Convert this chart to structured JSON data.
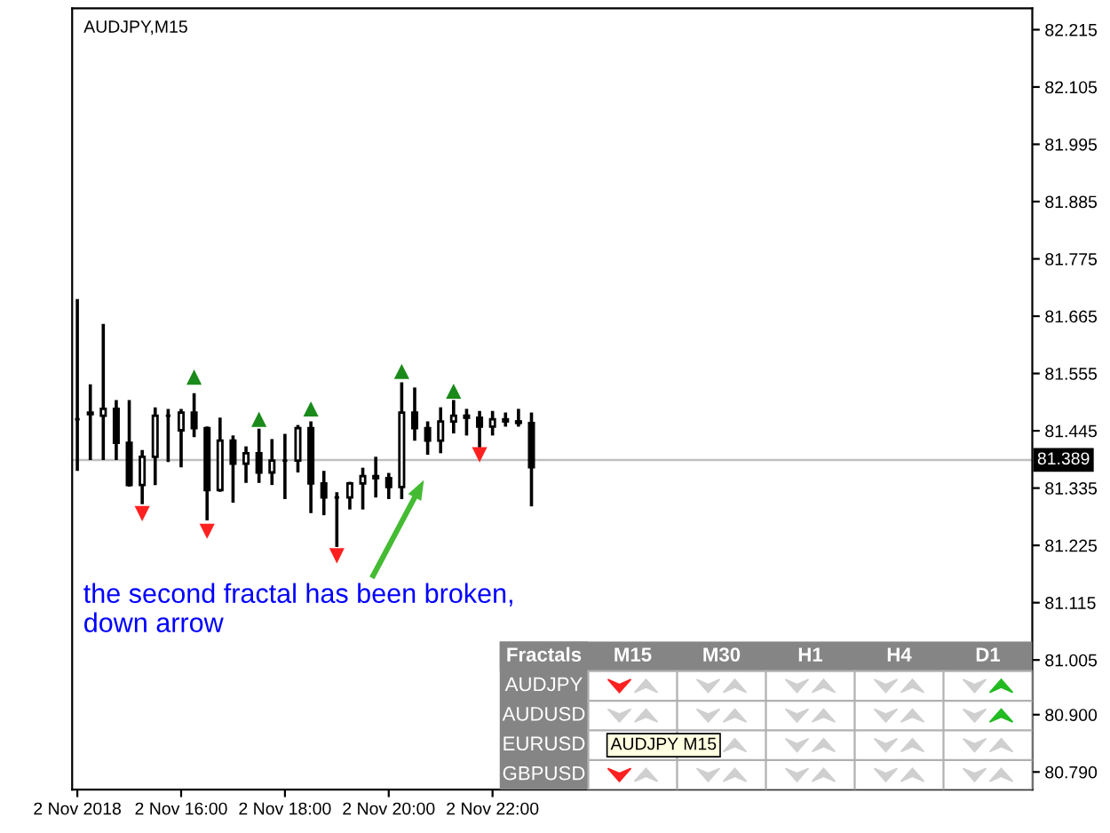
{
  "chart_data": [
    {
      "type": "candlestick",
      "title": "AUDJPY,M15",
      "x": [
        "2018-11-02T14:00",
        "2018-11-02T14:15",
        "2018-11-02T14:30",
        "2018-11-02T14:45",
        "2018-11-02T15:00",
        "2018-11-02T15:15",
        "2018-11-02T15:30",
        "2018-11-02T15:45",
        "2018-11-02T16:00",
        "2018-11-02T16:15",
        "2018-11-02T16:30",
        "2018-11-02T16:45",
        "2018-11-02T17:00",
        "2018-11-02T17:15",
        "2018-11-02T17:30",
        "2018-11-02T17:45",
        "2018-11-02T18:00",
        "2018-11-02T18:15",
        "2018-11-02T18:30",
        "2018-11-02T18:45",
        "2018-11-02T19:00",
        "2018-11-02T19:15",
        "2018-11-02T19:30",
        "2018-11-02T19:45",
        "2018-11-02T20:00",
        "2018-11-02T20:15",
        "2018-11-02T20:30",
        "2018-11-02T20:45",
        "2018-11-02T21:00",
        "2018-11-02T21:15",
        "2018-11-02T21:30",
        "2018-11-02T21:45",
        "2018-11-02T22:00",
        "2018-11-02T22:15",
        "2018-11-02T22:30",
        "2018-11-02T22:45"
      ],
      "ohlc": [
        [
          81.467,
          81.695,
          81.371,
          81.467
        ],
        [
          81.48,
          81.531,
          81.392,
          81.477
        ],
        [
          81.474,
          81.647,
          81.392,
          81.487
        ],
        [
          81.487,
          81.501,
          81.392,
          81.422
        ],
        [
          81.422,
          81.501,
          81.341,
          81.341
        ],
        [
          81.341,
          81.405,
          81.307,
          81.395
        ],
        [
          81.395,
          81.487,
          81.344,
          81.474
        ],
        [
          81.474,
          81.484,
          81.388,
          81.474
        ],
        [
          81.446,
          81.484,
          81.378,
          81.48
        ],
        [
          81.48,
          81.514,
          81.436,
          81.45
        ],
        [
          81.45,
          81.45,
          81.276,
          81.331
        ],
        [
          81.331,
          81.467,
          81.331,
          81.426
        ],
        [
          81.426,
          81.433,
          81.31,
          81.382
        ],
        [
          81.382,
          81.412,
          81.348,
          81.402
        ],
        [
          81.402,
          81.446,
          81.348,
          81.365
        ],
        [
          81.365,
          81.426,
          81.344,
          81.388
        ],
        [
          81.388,
          81.436,
          81.317,
          81.388
        ],
        [
          81.388,
          81.453,
          81.368,
          81.45
        ],
        [
          81.45,
          81.46,
          81.29,
          81.344
        ],
        [
          81.344,
          81.365,
          81.286,
          81.317
        ],
        [
          81.317,
          81.324,
          81.225,
          81.317
        ],
        [
          81.317,
          81.344,
          81.297,
          81.344
        ],
        [
          81.344,
          81.371,
          81.297,
          81.358
        ],
        [
          81.358,
          81.392,
          81.32,
          81.354
        ],
        [
          81.354,
          81.361,
          81.317,
          81.337
        ],
        [
          81.337,
          81.535,
          81.317,
          81.48
        ],
        [
          81.48,
          81.525,
          81.429,
          81.45
        ],
        [
          81.45,
          81.46,
          81.402,
          81.426
        ],
        [
          81.426,
          81.487,
          81.405,
          81.463
        ],
        [
          81.463,
          81.501,
          81.443,
          81.474
        ],
        [
          81.474,
          81.484,
          81.439,
          81.47
        ],
        [
          81.47,
          81.48,
          81.416,
          81.453
        ],
        [
          81.453,
          81.48,
          81.439,
          81.467
        ],
        [
          81.467,
          81.477,
          81.456,
          81.463
        ],
        [
          81.463,
          81.484,
          81.456,
          81.46
        ],
        [
          81.46,
          81.477,
          81.303,
          81.375
        ]
      ],
      "series": [
        {
          "type": "scatter",
          "marker": "triangle",
          "color": "#1a8a1a",
          "x": [
            "2018-11-02T16:15",
            "2018-11-02T17:30",
            "2018-11-02T18:30",
            "2018-11-02T20:15",
            "2018-11-02T21:15"
          ],
          "values": [
            81.548,
            81.467,
            81.487,
            81.559,
            81.521
          ]
        },
        {
          "type": "scatter",
          "marker": "triangle_down",
          "color": "#ff2020",
          "x": [
            "2018-11-02T15:15",
            "2018-11-02T16:30",
            "2018-11-02T19:00",
            "2018-11-02T21:45"
          ],
          "values": [
            81.286,
            81.252,
            81.205,
            81.399
          ]
        }
      ],
      "xlim": [
        "2018-11-02T13:54",
        "2018-11-03T08:24"
      ],
      "ylim": [
        80.756,
        82.256
      ],
      "xticks": [
        {
          "value": "2018-11-02T14:00",
          "label": "2 Nov 2018"
        },
        {
          "value": "2018-11-02T16:00",
          "label": "2 Nov 16:00"
        },
        {
          "value": "2018-11-02T18:00",
          "label": "2 Nov 18:00"
        },
        {
          "value": "2018-11-02T20:00",
          "label": "2 Nov 20:00"
        },
        {
          "value": "2018-11-02T22:00",
          "label": "2 Nov 22:00"
        }
      ],
      "yticks": [
        {
          "value": 82.215,
          "label": "82.215"
        },
        {
          "value": 82.105,
          "label": "82.105"
        },
        {
          "value": 81.995,
          "label": "81.995"
        },
        {
          "value": 81.885,
          "label": "81.885"
        },
        {
          "value": 81.775,
          "label": "81.775"
        },
        {
          "value": 81.665,
          "label": "81.665"
        },
        {
          "value": 81.555,
          "label": "81.555"
        },
        {
          "value": 81.445,
          "label": "81.445"
        },
        {
          "value": 81.335,
          "label": "81.335"
        },
        {
          "value": 81.225,
          "label": "81.225"
        },
        {
          "value": 81.115,
          "label": "81.115"
        },
        {
          "value": 81.005,
          "label": "81.005"
        },
        {
          "value": 80.9,
          "label": "80.900"
        },
        {
          "value": 80.79,
          "label": "80.790"
        }
      ],
      "ref_lines": [
        {
          "axis": "y",
          "value": 81.389,
          "label": "81.389",
          "color": "#c0c0c0"
        }
      ],
      "annotations": [
        "the second fractal has been broken,\ndown arrow"
      ],
      "grid": false,
      "legend": false
    },
    {
      "type": "other",
      "title": "Fractals",
      "categories": [
        "M15",
        "M30",
        "H1",
        "H4",
        "D1"
      ],
      "y_categories": [
        "AUDJPY",
        "AUDUSD",
        "EURUSD",
        "GBPUSD"
      ],
      "colors": [
        [
          [
            "#ff2020",
            null
          ],
          [
            null,
            null
          ],
          [
            null,
            null
          ],
          [
            null,
            null
          ],
          [
            null,
            "#22bb22"
          ]
        ],
        [
          [
            null,
            null
          ],
          [
            null,
            null
          ],
          [
            null,
            null
          ],
          [
            null,
            null
          ],
          [
            null,
            "#22bb22"
          ]
        ],
        [
          [
            null,
            null
          ],
          [
            null,
            null
          ],
          [
            null,
            null
          ],
          [
            null,
            null
          ],
          [
            null,
            null
          ]
        ],
        [
          [
            "#ff2020",
            null
          ],
          [
            null,
            null
          ],
          [
            null,
            null
          ],
          [
            null,
            null
          ],
          [
            null,
            null
          ]
        ]
      ],
      "annotations": [
        "AUDJPY M15"
      ]
    }
  ]
}
